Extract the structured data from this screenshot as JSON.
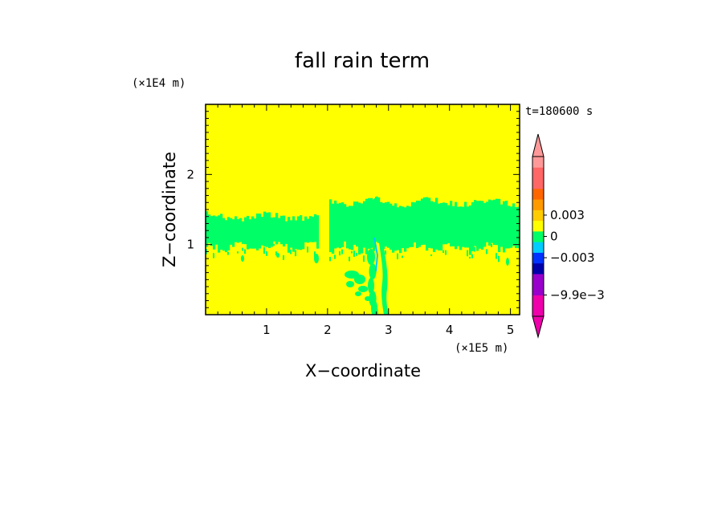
{
  "chart_data": {
    "type": "heatmap",
    "title": "fall rain term",
    "time_label": "t=180600 s",
    "xlabel": "X−coordinate",
    "ylabel": "Z−coordinate",
    "x_unit": "(×1E5 m)",
    "y_unit": "(×1E4 m)",
    "xlim": [
      0,
      5.15
    ],
    "ylim": [
      0,
      3
    ],
    "x_ticks": [
      1,
      2,
      3,
      4,
      5
    ],
    "x_tick_labels": [
      "1",
      "2",
      "3",
      "4",
      "5"
    ],
    "y_ticks": [
      1,
      2
    ],
    "y_tick_labels": [
      "1",
      "2"
    ],
    "background_color": "#ffff00",
    "field_color": "#00ff66",
    "field_description": "green band of slightly positive values between z≈0.9 and 1.5 across the domain with a plume descending to the surface near x≈2.8",
    "colorbar": {
      "labels": [
        {
          "value": 0.003,
          "text": "0.003"
        },
        {
          "value": 0,
          "text": "0"
        },
        {
          "value": -0.003,
          "text": "−0.003"
        },
        {
          "value": -0.0099,
          "text": "−9.9e−3"
        }
      ],
      "colors": [
        "#ee00aa",
        "#ee00aa",
        "#9900cc",
        "#9900cc",
        "#0000aa",
        "#0033ff",
        "#00ccff",
        "#00ff66",
        "#ffff00",
        "#ffcc00",
        "#ff9900",
        "#ff6600",
        "#ff6666",
        "#ff6666",
        "#ff9999"
      ]
    }
  }
}
